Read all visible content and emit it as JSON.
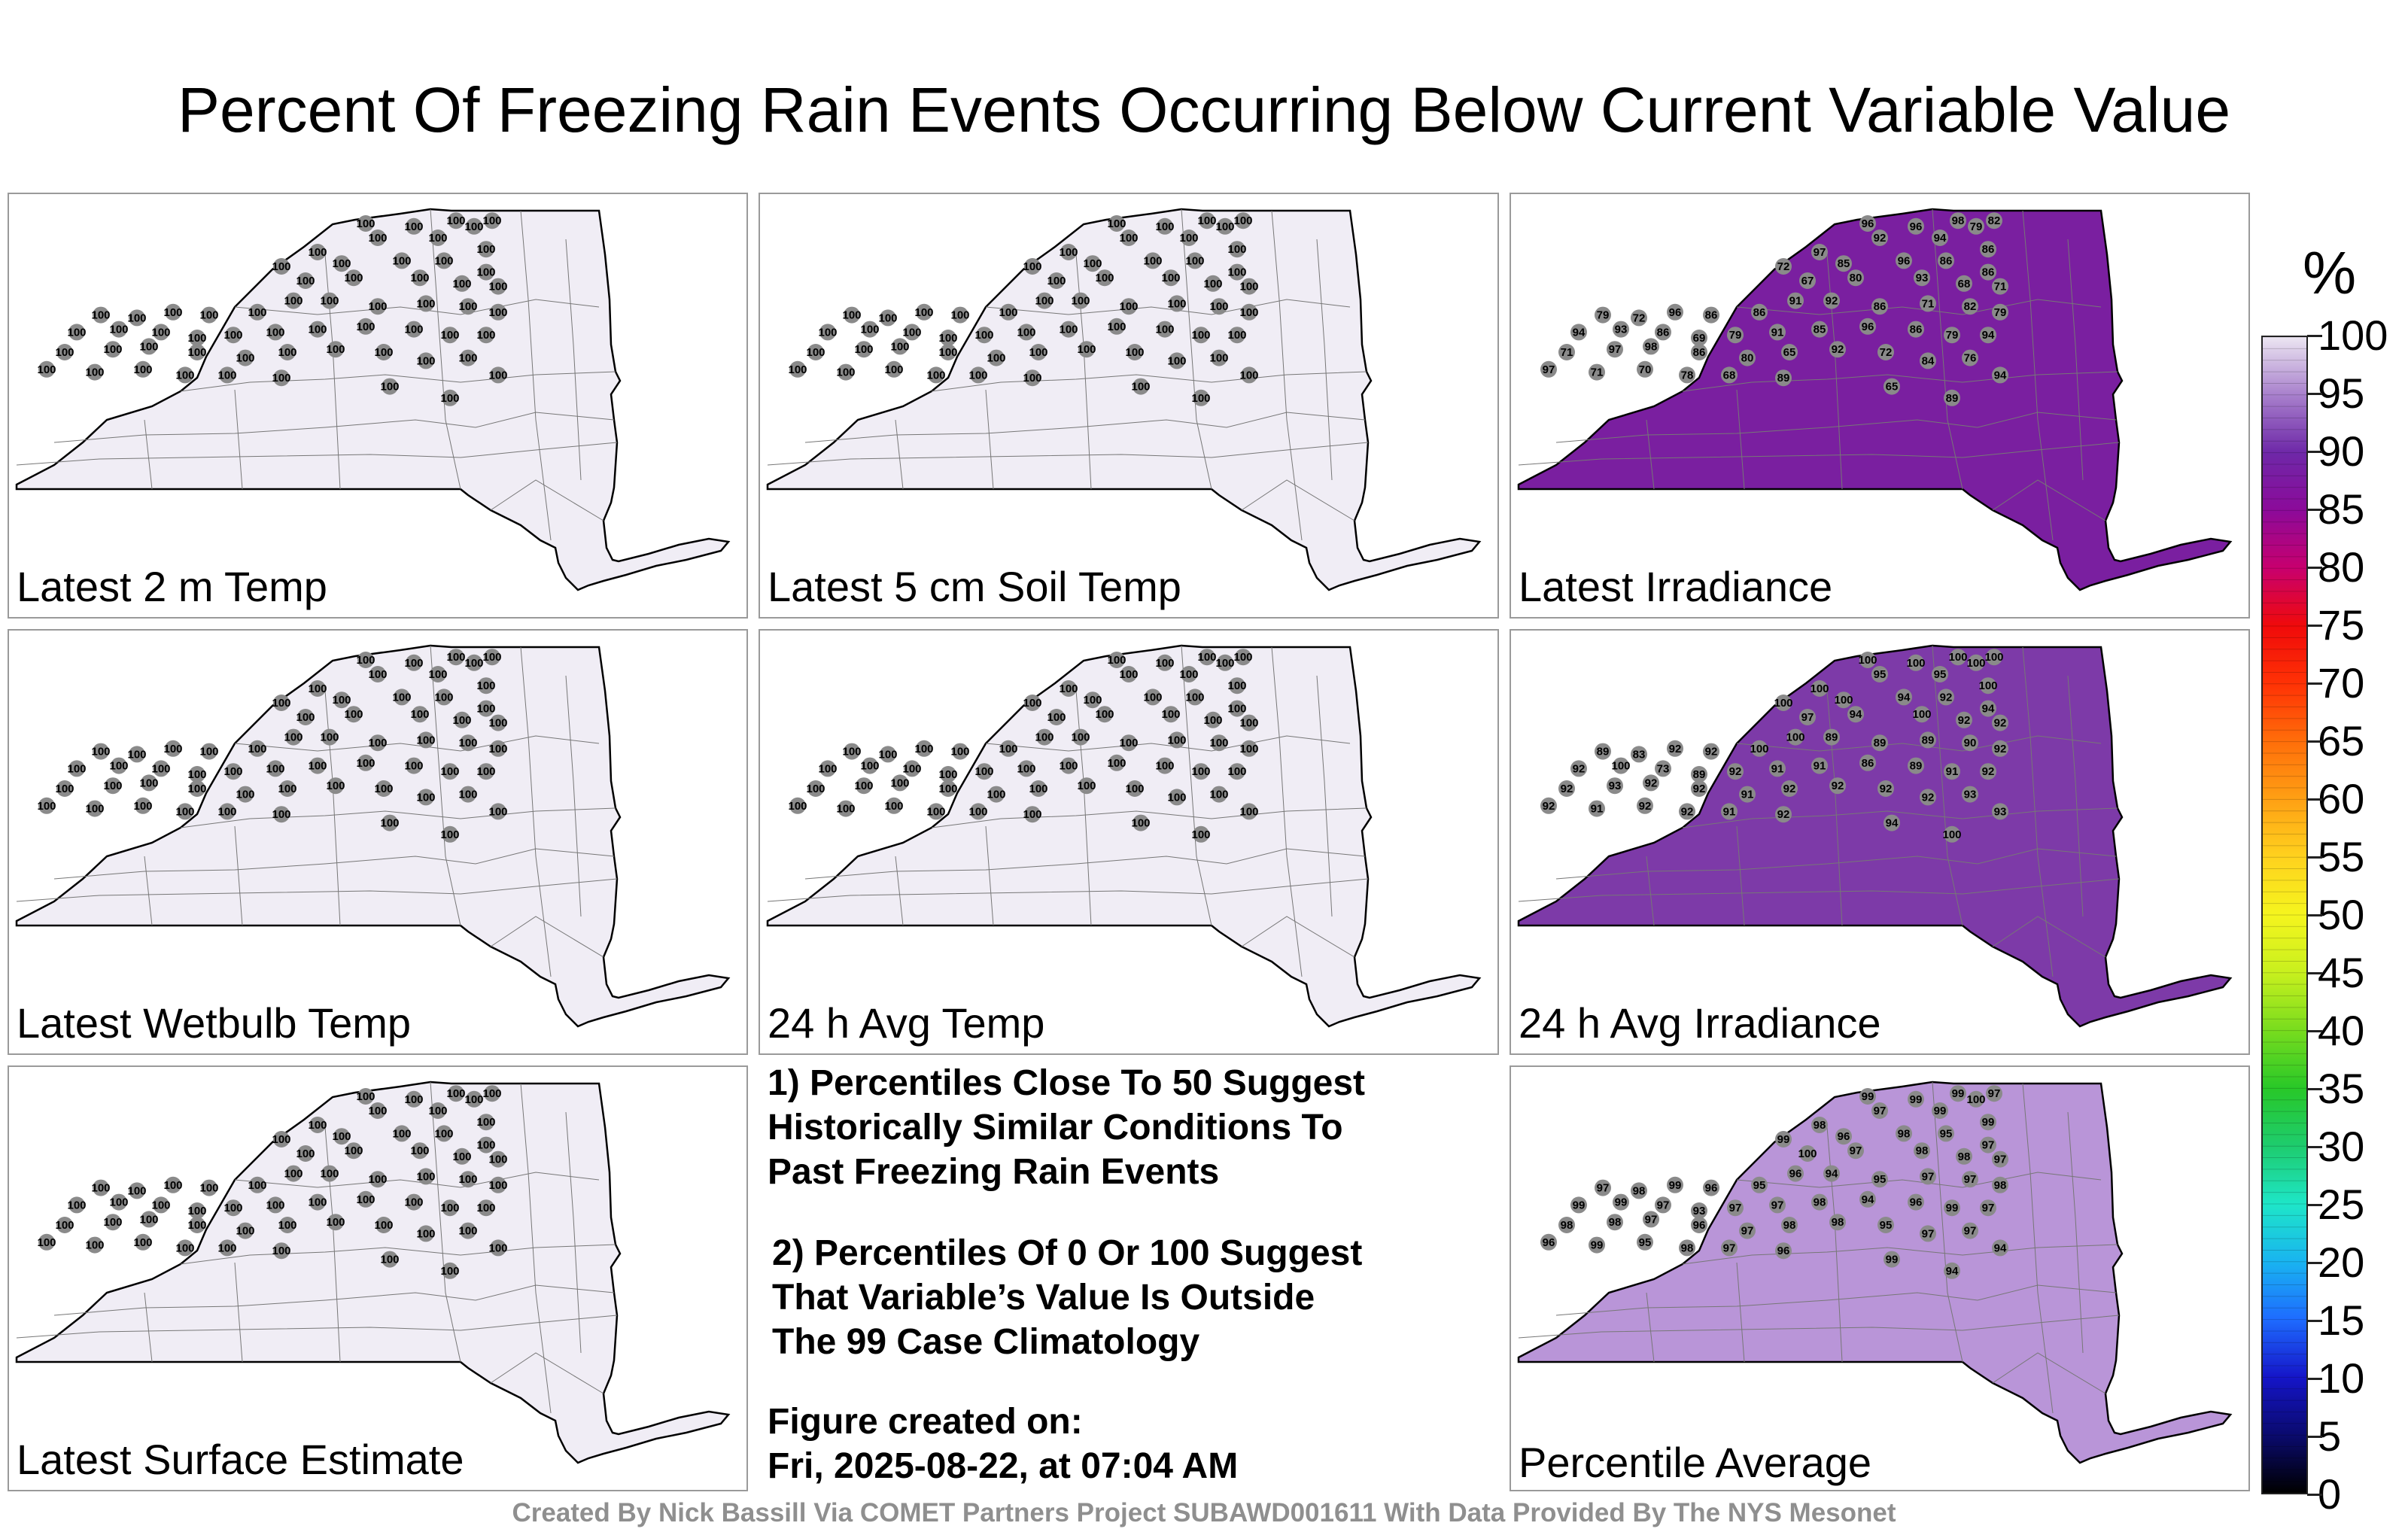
{
  "title": "Percent Of Freezing Rain Events Occurring Below Current Variable Value",
  "panels": [
    {
      "label": "Latest 2 m Temp",
      "fill": "#f0edf5",
      "values": [
        100,
        100,
        100,
        100,
        100,
        100,
        100,
        100,
        100,
        100,
        100,
        100,
        100,
        100,
        100,
        100,
        100,
        100,
        100,
        100,
        100,
        100,
        100,
        100,
        100,
        100,
        100,
        100,
        100,
        100,
        100,
        100,
        100,
        100,
        100,
        100,
        100,
        100,
        100,
        100,
        100,
        100,
        100,
        100,
        100,
        100,
        100,
        100,
        100,
        100,
        100,
        100,
        100,
        100,
        100,
        100,
        100,
        100,
        100,
        100
      ]
    },
    {
      "label": "Latest 5 cm Soil Temp",
      "fill": "#f0edf5",
      "values": [
        100,
        100,
        100,
        100,
        100,
        100,
        100,
        100,
        100,
        100,
        100,
        100,
        100,
        100,
        100,
        100,
        100,
        100,
        100,
        100,
        100,
        100,
        100,
        100,
        100,
        100,
        100,
        100,
        100,
        100,
        100,
        100,
        100,
        100,
        100,
        100,
        100,
        100,
        100,
        100,
        100,
        100,
        100,
        100,
        100,
        100,
        100,
        100,
        100,
        100,
        100,
        100,
        100,
        100,
        100,
        100,
        100,
        100,
        100,
        100
      ]
    },
    {
      "label": "Latest Irradiance",
      "fill": "#7a1fa0",
      "values": [
        96,
        96,
        98,
        79,
        82,
        92,
        94,
        97,
        86,
        72,
        85,
        96,
        86,
        86,
        67,
        80,
        93,
        68,
        71,
        79,
        72,
        96,
        86,
        86,
        91,
        92,
        86,
        71,
        82,
        79,
        94,
        93,
        86,
        69,
        79,
        91,
        85,
        96,
        86,
        79,
        94,
        71,
        97,
        98,
        86,
        80,
        65,
        92,
        72,
        84,
        76,
        94,
        97,
        71,
        70,
        78,
        68,
        89,
        65,
        89
      ]
    },
    {
      "label": "Latest Wetbulb Temp",
      "fill": "#f0edf5",
      "values": [
        100,
        100,
        100,
        100,
        100,
        100,
        100,
        100,
        100,
        100,
        100,
        100,
        100,
        100,
        100,
        100,
        100,
        100,
        100,
        100,
        100,
        100,
        100,
        100,
        100,
        100,
        100,
        100,
        100,
        100,
        100,
        100,
        100,
        100,
        100,
        100,
        100,
        100,
        100,
        100,
        100,
        100,
        100,
        100,
        100,
        100,
        100,
        100,
        100,
        100,
        100,
        100,
        100,
        100,
        100,
        100,
        100,
        100,
        100,
        100
      ]
    },
    {
      "label": "24 h Avg Temp",
      "fill": "#f0edf5",
      "values": [
        100,
        100,
        100,
        100,
        100,
        100,
        100,
        100,
        100,
        100,
        100,
        100,
        100,
        100,
        100,
        100,
        100,
        100,
        100,
        100,
        100,
        100,
        100,
        100,
        100,
        100,
        100,
        100,
        100,
        100,
        100,
        100,
        100,
        100,
        100,
        100,
        100,
        100,
        100,
        100,
        100,
        100,
        100,
        100,
        100,
        100,
        100,
        100,
        100,
        100,
        100,
        100,
        100,
        100,
        100,
        100,
        100,
        100,
        100,
        100
      ]
    },
    {
      "label": "24 h Avg Irradiance",
      "fill": "#7d3aa8",
      "values": [
        100,
        100,
        100,
        100,
        100,
        95,
        95,
        100,
        100,
        100,
        100,
        94,
        92,
        94,
        97,
        94,
        100,
        92,
        92,
        89,
        83,
        92,
        92,
        100,
        100,
        89,
        89,
        89,
        90,
        92,
        92,
        100,
        73,
        89,
        92,
        91,
        91,
        86,
        89,
        91,
        92,
        92,
        93,
        92,
        92,
        91,
        92,
        92,
        92,
        92,
        93,
        93,
        92,
        91,
        92,
        92,
        91,
        92,
        94,
        100
      ]
    },
    {
      "label": "Latest Surface Estimate",
      "fill": "#f0edf5",
      "values": [
        100,
        100,
        100,
        100,
        100,
        100,
        100,
        100,
        100,
        100,
        100,
        100,
        100,
        100,
        100,
        100,
        100,
        100,
        100,
        100,
        100,
        100,
        100,
        100,
        100,
        100,
        100,
        100,
        100,
        100,
        100,
        100,
        100,
        100,
        100,
        100,
        100,
        100,
        100,
        100,
        100,
        100,
        100,
        100,
        100,
        100,
        100,
        100,
        100,
        100,
        100,
        100,
        100,
        100,
        100,
        100,
        100,
        100,
        100,
        100
      ]
    },
    {
      "label": "Percentile Average",
      "fill": "#b995d8",
      "values": [
        99,
        99,
        99,
        100,
        97,
        97,
        99,
        98,
        99,
        99,
        96,
        98,
        95,
        97,
        100,
        97,
        98,
        98,
        97,
        97,
        98,
        99,
        96,
        95,
        96,
        94,
        95,
        97,
        97,
        98,
        99,
        99,
        97,
        93,
        97,
        97,
        98,
        94,
        96,
        99,
        97,
        98,
        98,
        97,
        96,
        97,
        98,
        98,
        95,
        97,
        97,
        94,
        96,
        99,
        95,
        98,
        97,
        96,
        99,
        94
      ]
    }
  ],
  "notes": {
    "note1": [
      "1) Percentiles Close To 50 Suggest",
      "Historically Similar Conditions To",
      "Past Freezing Rain Events"
    ],
    "note2": [
      "2) Percentiles Of 0 Or 100 Suggest",
      "That Variable’s Value Is Outside",
      "The 99 Case Climatology"
    ],
    "created_label": "Figure created on:",
    "created_date": "Fri, 2025-08-22, at 07:04 AM"
  },
  "footer": "Created By Nick Bassill Via COMET Partners Project SUBAWD001611 With Data Provided By The NYS Mesonet",
  "colorbar": {
    "unit": "%",
    "ticks": [
      "0",
      "5",
      "10",
      "15",
      "20",
      "25",
      "30",
      "35",
      "40",
      "45",
      "50",
      "55",
      "60",
      "65",
      "70",
      "75",
      "80",
      "85",
      "90",
      "95",
      "100"
    ],
    "colors": [
      "#000000",
      "#0a0a6e",
      "#1515c8",
      "#1e6bff",
      "#19b4f0",
      "#1ee6c8",
      "#1ecc6e",
      "#28c828",
      "#78dc1e",
      "#c8f01e",
      "#f5f51e",
      "#ffd21e",
      "#ffa014",
      "#ff6e0a",
      "#ff3205",
      "#f00a0a",
      "#c8006e",
      "#8c0a9a",
      "#6e28a8",
      "#a880cc",
      "#ece6f2"
    ]
  }
}
